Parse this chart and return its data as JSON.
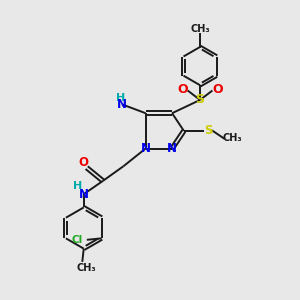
{
  "background_color": "#e8e8e8",
  "bond_color": "#1a1a1a",
  "N_color": "#0000ee",
  "O_color": "#ee0000",
  "S_color": "#cccc00",
  "Cl_color": "#22aa22",
  "H_color": "#00aaaa",
  "C_color": "#1a1a1a",
  "figsize": [
    3.0,
    3.0
  ],
  "dpi": 100,
  "xlim": [
    0,
    10
  ],
  "ylim": [
    0,
    10
  ]
}
